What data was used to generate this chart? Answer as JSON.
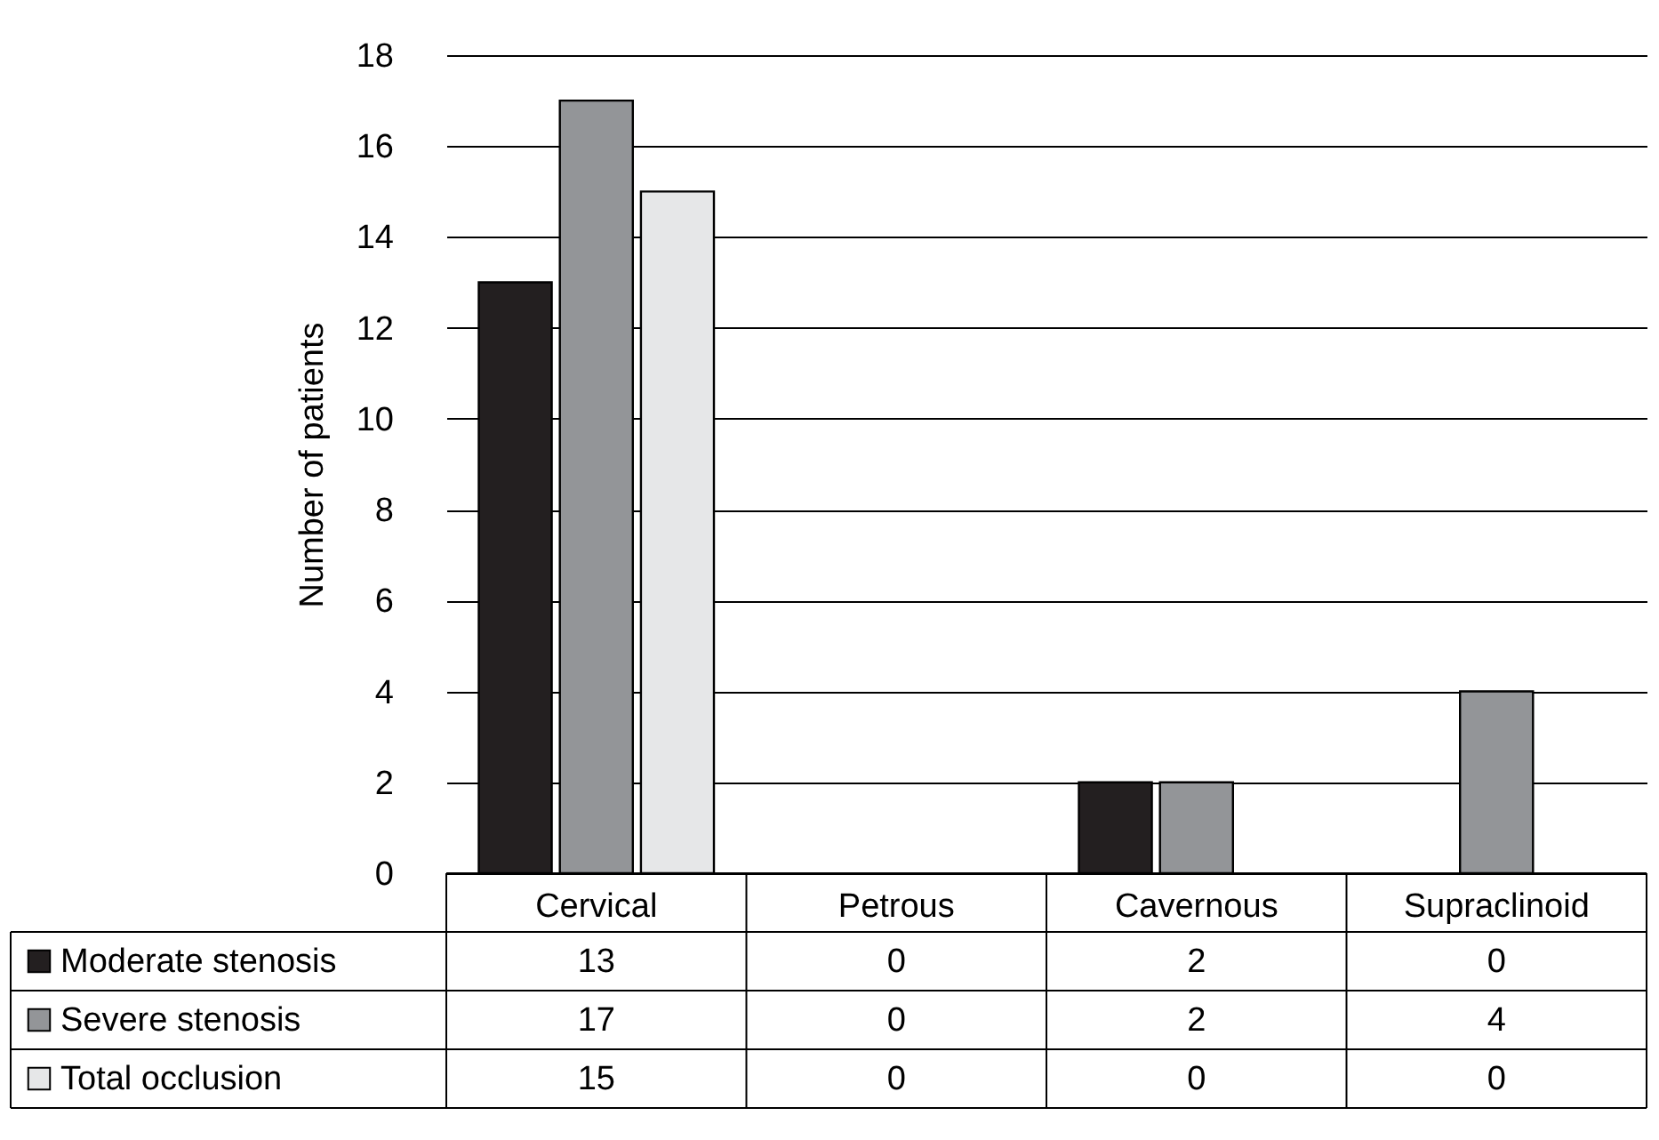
{
  "chart_data": {
    "type": "bar",
    "ylabel": "Number of patients",
    "categories": [
      "Cervical",
      "Petrous",
      "Cavernous",
      "Supraclinoid"
    ],
    "series": [
      {
        "name": "Moderate stenosis",
        "color": "#231f20",
        "values": [
          13,
          0,
          2,
          0
        ]
      },
      {
        "name": "Severe stenosis",
        "color": "#939598",
        "values": [
          17,
          0,
          2,
          4
        ]
      },
      {
        "name": "Total occlusion",
        "color": "#e6e7e8",
        "values": [
          15,
          0,
          0,
          0
        ]
      }
    ],
    "ylim": [
      0,
      18
    ],
    "yticks": [
      0,
      2,
      4,
      6,
      8,
      10,
      12,
      14,
      16,
      18
    ],
    "grid": "y",
    "legend": "bottom left",
    "data_labels": true
  }
}
